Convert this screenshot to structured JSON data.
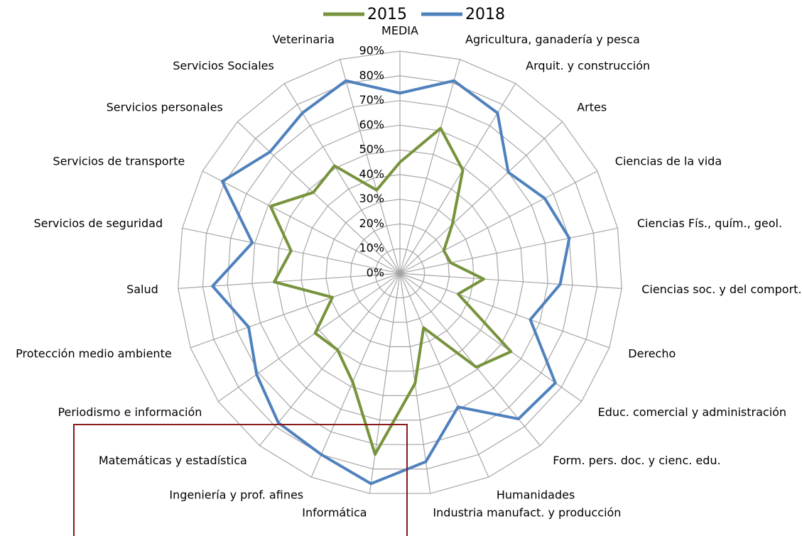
{
  "chart_data": {
    "type": "radar",
    "categories": [
      "MEDIA",
      "Agricultura, ganadería y pesca",
      "Arquit. y construcción",
      "Artes",
      "Ciencias de la vida",
      "Ciencias Fís., quím., geol.",
      "Ciencias soc. y del comport.",
      "Derecho",
      "Educ. comercial y administración",
      "Form. pers. doc. y cienc. edu.",
      "Humanidades",
      "Industria manufact. y producción",
      "Informática",
      "Ingeniería y prof. afines",
      "Matemáticas y estadística",
      "Periodismo e información",
      "Protección medio ambiente",
      "Salud",
      "Servicios de seguridad",
      "Servicios de transporte",
      "Servicios personales",
      "Servicios Sociales",
      "Veterinaria"
    ],
    "series": [
      {
        "name": "2015",
        "color": "#77933c",
        "values": [
          45,
          61,
          49,
          29,
          20,
          21,
          34,
          25,
          55,
          49,
          24,
          45,
          74,
          48,
          40,
          42,
          29,
          51,
          45,
          59,
          48,
          51,
          35
        ]
      },
      {
        "name": "2018",
        "color": "#4f81bd",
        "values": [
          73,
          81,
          76,
          60,
          66,
          70,
          65,
          56,
          77,
          76,
          59,
          77,
          86,
          80,
          78,
          71,
          65,
          76,
          61,
          81,
          72,
          76,
          81
        ]
      }
    ],
    "ylim": [
      0,
      90
    ],
    "yticks": [
      {
        "value": 0,
        "label": "0%"
      },
      {
        "value": 10,
        "label": "10%"
      },
      {
        "value": 20,
        "label": "20%"
      },
      {
        "value": 30,
        "label": "30%"
      },
      {
        "value": 40,
        "label": "40%"
      },
      {
        "value": 50,
        "label": "50%"
      },
      {
        "value": 60,
        "label": "60%"
      },
      {
        "value": 70,
        "label": "70%"
      },
      {
        "value": 80,
        "label": "80%"
      },
      {
        "value": 90,
        "label": "90%"
      }
    ],
    "grid": true,
    "legend": "top"
  }
}
